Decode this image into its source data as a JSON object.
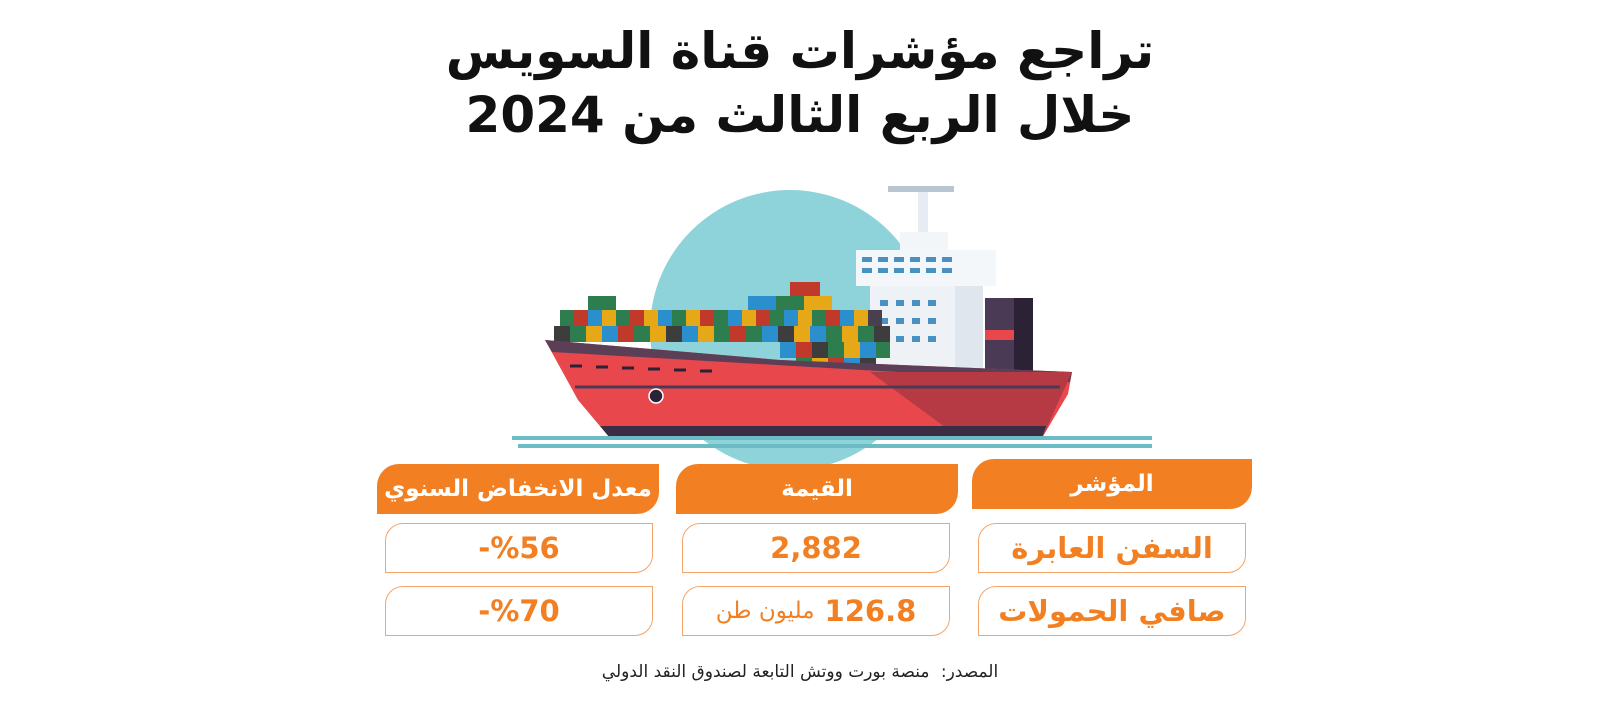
{
  "title": {
    "line1": "تراجع مؤشرات قناة السويس",
    "line2": "خلال الربع الثالث من 2024"
  },
  "table": {
    "headers": [
      "المؤشر",
      "القيمة",
      "معدل الانخفاض السنوي"
    ],
    "rows": [
      {
        "indicator": "السفن العابرة",
        "value": "2,882",
        "unit": "",
        "decline": "%56-"
      },
      {
        "indicator": "صافي الحمولات",
        "value": "126.8",
        "unit": "مليون طن",
        "decline": "%70-"
      }
    ]
  },
  "source": {
    "label": "المصدر:",
    "text": "منصة بورت ووتش التابعة لصندوق النقد الدولي"
  },
  "colors": {
    "accent": "#f28022",
    "hull": "#e8474c",
    "sky_circle": "#8fd3da",
    "water": "#6bbcc3"
  }
}
